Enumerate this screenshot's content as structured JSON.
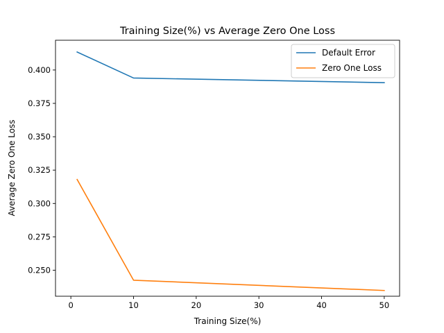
{
  "chart_data": {
    "type": "line",
    "title": "Training Size(%) vs Average Zero One Loss",
    "xlabel": "Training Size(%)",
    "ylabel": "Average Zero One Loss",
    "xlim": [
      -2.45,
      52.45
    ],
    "ylim": [
      0.2305,
      0.4223
    ],
    "xticks": [
      0,
      10,
      20,
      30,
      40,
      50
    ],
    "yticks": [
      0.25,
      0.275,
      0.3,
      0.325,
      0.35,
      0.375,
      0.4
    ],
    "ytick_labels": [
      "0.250",
      "0.275",
      "0.300",
      "0.325",
      "0.350",
      "0.375",
      "0.400"
    ],
    "grid": false,
    "legend_position": "top-right",
    "series": [
      {
        "name": "Default Error",
        "color": "#1f77b4",
        "x": [
          1,
          10,
          50
        ],
        "y": [
          0.4135,
          0.394,
          0.3905
        ]
      },
      {
        "name": "Zero One Loss",
        "color": "#ff7f0e",
        "x": [
          1,
          10,
          50
        ],
        "y": [
          0.318,
          0.2425,
          0.2348
        ]
      }
    ]
  }
}
